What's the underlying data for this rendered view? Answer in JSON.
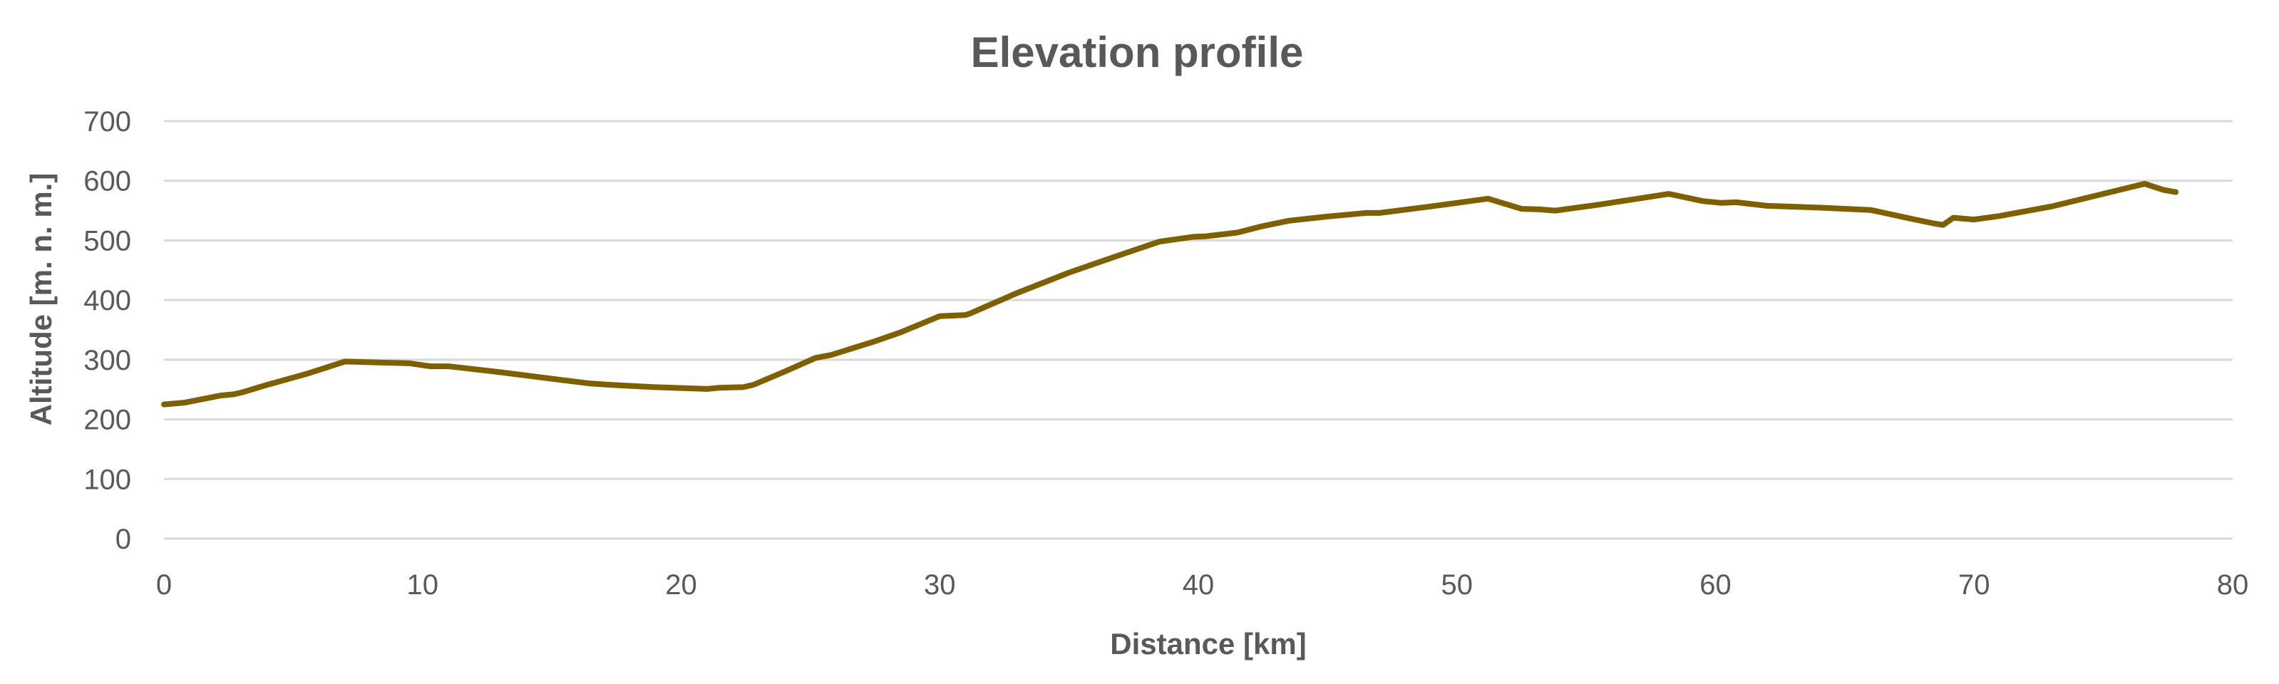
{
  "chart_data": {
    "type": "line",
    "title": "Elevation profile",
    "xlabel": "Distance [km]",
    "ylabel": "Altitude [m. n. m.]",
    "xlim": [
      0,
      80
    ],
    "ylim": [
      0,
      700
    ],
    "xticks": [
      0,
      10,
      20,
      30,
      40,
      50,
      60,
      70,
      80
    ],
    "yticks": [
      0,
      100,
      200,
      300,
      400,
      500,
      600,
      700
    ],
    "grid": "horizontal",
    "legend": "none",
    "line_color": "#7f6000",
    "series": [
      {
        "points": [
          [
            0,
            225
          ],
          [
            0.8,
            228
          ],
          [
            1.5,
            234
          ],
          [
            2.2,
            240
          ],
          [
            2.7,
            242
          ],
          [
            3.0,
            245
          ],
          [
            4.0,
            258
          ],
          [
            5.5,
            276
          ],
          [
            7.0,
            297
          ],
          [
            9.5,
            294
          ],
          [
            10.3,
            289
          ],
          [
            11.0,
            289
          ],
          [
            13.0,
            279
          ],
          [
            15.0,
            268
          ],
          [
            16.5,
            260
          ],
          [
            17.2,
            258
          ],
          [
            19.0,
            254
          ],
          [
            21.0,
            251
          ],
          [
            21.5,
            253
          ],
          [
            22.4,
            254
          ],
          [
            22.8,
            258
          ],
          [
            24.0,
            280
          ],
          [
            25.2,
            303
          ],
          [
            25.8,
            308
          ],
          [
            27.5,
            331
          ],
          [
            28.5,
            346
          ],
          [
            30.0,
            373
          ],
          [
            31.0,
            375
          ],
          [
            31.2,
            378
          ],
          [
            33.0,
            412
          ],
          [
            35.0,
            446
          ],
          [
            37.0,
            476
          ],
          [
            38.5,
            498
          ],
          [
            39.8,
            506
          ],
          [
            40.3,
            507
          ],
          [
            41.5,
            513
          ],
          [
            42.5,
            524
          ],
          [
            43.5,
            533
          ],
          [
            45.0,
            540
          ],
          [
            46.5,
            546
          ],
          [
            47.0,
            546
          ],
          [
            49.0,
            557
          ],
          [
            51.2,
            570
          ],
          [
            52.5,
            553
          ],
          [
            53.2,
            552
          ],
          [
            53.8,
            550
          ],
          [
            55.5,
            560
          ],
          [
            58.2,
            578
          ],
          [
            59.5,
            566
          ],
          [
            60.2,
            563
          ],
          [
            60.8,
            564
          ],
          [
            62.0,
            558
          ],
          [
            64.0,
            555
          ],
          [
            66.0,
            551
          ],
          [
            67.5,
            537
          ],
          [
            68.5,
            528
          ],
          [
            68.8,
            526
          ],
          [
            69.2,
            538
          ],
          [
            70.0,
            535
          ],
          [
            71.0,
            541
          ],
          [
            73.0,
            557
          ],
          [
            76.6,
            595
          ],
          [
            77.3,
            585
          ],
          [
            77.8,
            581
          ]
        ]
      }
    ]
  }
}
